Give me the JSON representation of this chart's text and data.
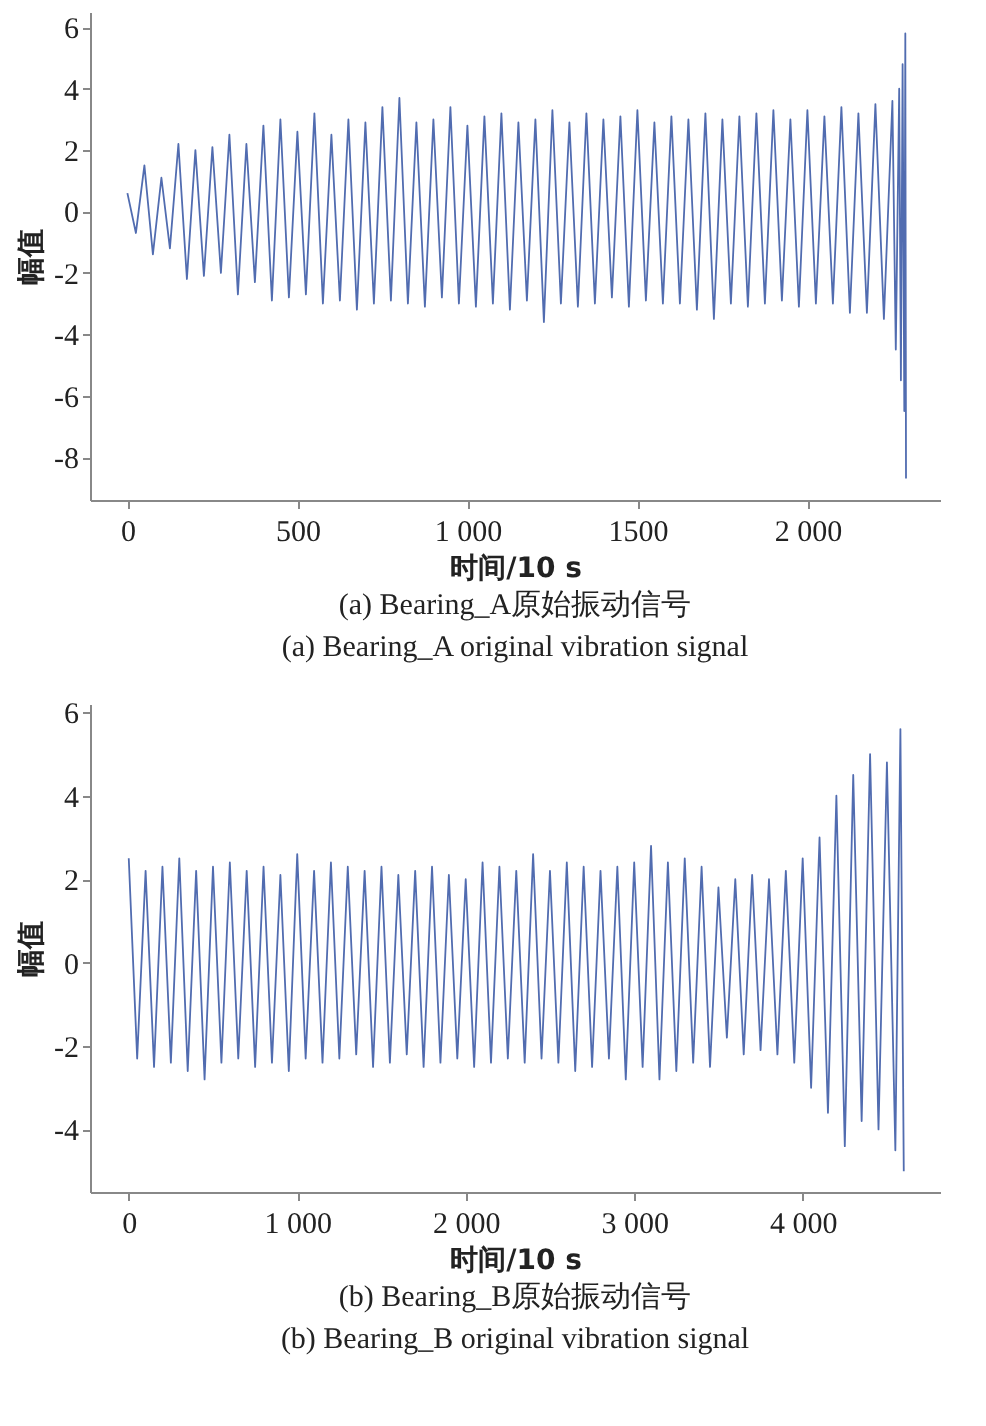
{
  "chart_data": [
    {
      "type": "line",
      "title": "(a) Bearing_A原始振动信号",
      "subtitle": "(a) Bearing_A original vibration signal",
      "xlabel": "时间/10 s",
      "ylabel": "幅值",
      "xlim": [
        -110,
        2390
      ],
      "ylim": [
        -9.4,
        6.5
      ],
      "xticks": [
        0,
        500,
        {
          "value": 1000,
          "label": "1 000"
        },
        1500,
        {
          "value": 2000,
          "label": "2 000"
        }
      ],
      "yticks": [
        -8,
        -6,
        -4,
        -2,
        0,
        2,
        4,
        6
      ],
      "grid": false,
      "marker": "none",
      "x": [
        0,
        25,
        50,
        75,
        100,
        125,
        150,
        175,
        200,
        225,
        250,
        275,
        300,
        325,
        350,
        375,
        400,
        425,
        450,
        475,
        500,
        525,
        550,
        575,
        600,
        625,
        650,
        675,
        700,
        725,
        750,
        775,
        800,
        825,
        850,
        875,
        900,
        925,
        950,
        975,
        1000,
        1025,
        1050,
        1075,
        1100,
        1125,
        1150,
        1175,
        1200,
        1225,
        1250,
        1275,
        1300,
        1325,
        1350,
        1375,
        1400,
        1425,
        1450,
        1475,
        1500,
        1525,
        1550,
        1575,
        1600,
        1625,
        1650,
        1675,
        1700,
        1725,
        1750,
        1775,
        1800,
        1825,
        1850,
        1875,
        1900,
        1925,
        1950,
        1975,
        2000,
        2025,
        2050,
        2075,
        2100,
        2125,
        2150,
        2175,
        2200,
        2225,
        2250,
        2260,
        2270,
        2275,
        2280,
        2285,
        2288,
        2290
      ],
      "series": [
        {
          "color": "#516cb0",
          "values": [
            0.6,
            -0.7,
            1.5,
            -1.4,
            1.1,
            -1.2,
            2.2,
            -2.2,
            2.0,
            -2.1,
            2.1,
            -2.0,
            2.5,
            -2.7,
            2.2,
            -2.3,
            2.8,
            -2.9,
            3.0,
            -2.8,
            2.6,
            -2.7,
            3.2,
            -3.0,
            2.5,
            -2.9,
            3.0,
            -3.2,
            2.9,
            -3.0,
            3.4,
            -2.9,
            3.7,
            -3.0,
            2.9,
            -3.1,
            3.0,
            -2.8,
            3.4,
            -3.0,
            2.8,
            -3.1,
            3.1,
            -3.0,
            3.2,
            -3.2,
            2.9,
            -2.9,
            3.0,
            -3.6,
            3.3,
            -3.0,
            2.9,
            -3.1,
            3.2,
            -3.0,
            3.0,
            -2.8,
            3.1,
            -3.1,
            3.3,
            -2.9,
            2.9,
            -3.0,
            3.1,
            -3.0,
            3.0,
            -3.2,
            3.2,
            -3.5,
            3.0,
            -3.0,
            3.1,
            -3.1,
            3.2,
            -3.0,
            3.3,
            -2.9,
            3.0,
            -3.1,
            3.3,
            -3.0,
            3.1,
            -3.0,
            3.4,
            -3.3,
            3.2,
            -3.3,
            3.5,
            -3.5,
            3.6,
            -4.5,
            4.0,
            -5.5,
            4.8,
            -6.5,
            5.8,
            -8.7
          ]
        }
      ]
    },
    {
      "type": "line",
      "title": "(b)  Bearing_B原始振动信号",
      "subtitle": "(b) Bearing_B original vibration signal",
      "xlabel": "时间/10 s",
      "ylabel": "幅值",
      "xlim": [
        -230,
        4815
      ],
      "ylim": [
        -5.5,
        6.2
      ],
      "xticks": [
        0,
        {
          "value": 1000,
          "label": "1 000"
        },
        {
          "value": 2000,
          "label": "2 000"
        },
        {
          "value": 3000,
          "label": "3 000"
        },
        {
          "value": 4000,
          "label": "4 000"
        }
      ],
      "yticks": [
        -4,
        -2,
        0,
        2,
        4,
        6
      ],
      "grid": false,
      "marker": "none",
      "x": [
        0,
        50,
        100,
        150,
        200,
        250,
        300,
        350,
        400,
        450,
        500,
        550,
        600,
        650,
        700,
        750,
        800,
        850,
        900,
        950,
        1000,
        1050,
        1100,
        1150,
        1200,
        1250,
        1300,
        1350,
        1400,
        1450,
        1500,
        1550,
        1600,
        1650,
        1700,
        1750,
        1800,
        1850,
        1900,
        1950,
        2000,
        2050,
        2100,
        2150,
        2200,
        2250,
        2300,
        2350,
        2400,
        2450,
        2500,
        2550,
        2600,
        2650,
        2700,
        2750,
        2800,
        2850,
        2900,
        2950,
        3000,
        3050,
        3100,
        3150,
        3200,
        3250,
        3300,
        3350,
        3400,
        3450,
        3500,
        3550,
        3600,
        3650,
        3700,
        3750,
        3800,
        3850,
        3900,
        3950,
        4000,
        4050,
        4100,
        4150,
        4200,
        4250,
        4300,
        4350,
        4400,
        4450,
        4500,
        4550,
        4580,
        4600
      ],
      "series": [
        {
          "color": "#516cb0",
          "values": [
            2.5,
            -2.3,
            2.2,
            -2.5,
            2.3,
            -2.4,
            2.5,
            -2.6,
            2.2,
            -2.8,
            2.3,
            -2.4,
            2.4,
            -2.3,
            2.2,
            -2.5,
            2.3,
            -2.4,
            2.1,
            -2.6,
            2.6,
            -2.3,
            2.2,
            -2.4,
            2.4,
            -2.3,
            2.3,
            -2.2,
            2.2,
            -2.5,
            2.3,
            -2.4,
            2.1,
            -2.2,
            2.2,
            -2.5,
            2.3,
            -2.4,
            2.1,
            -2.3,
            2.0,
            -2.5,
            2.4,
            -2.4,
            2.3,
            -2.3,
            2.2,
            -2.4,
            2.6,
            -2.3,
            2.2,
            -2.4,
            2.4,
            -2.6,
            2.3,
            -2.5,
            2.2,
            -2.3,
            2.3,
            -2.8,
            2.4,
            -2.5,
            2.8,
            -2.8,
            2.4,
            -2.6,
            2.5,
            -2.4,
            2.3,
            -2.5,
            1.8,
            -1.8,
            2.0,
            -2.2,
            2.1,
            -2.1,
            2.0,
            -2.2,
            2.2,
            -2.4,
            2.5,
            -3.0,
            3.0,
            -3.6,
            4.0,
            -4.4,
            4.5,
            -3.8,
            5.0,
            -4.0,
            4.8,
            -4.5,
            5.6,
            -5.0
          ]
        }
      ]
    }
  ]
}
